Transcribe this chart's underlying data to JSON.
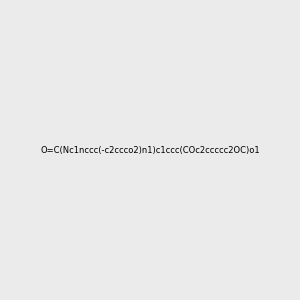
{
  "smiles": "O=C(Nc1nccc(-c2ccco2)n1)c1ccc(COc2ccccc2OC)o1",
  "background_color": "#ebebeb",
  "fig_width": 3.0,
  "fig_height": 3.0,
  "dpi": 100,
  "title": "",
  "atom_colors": {
    "N": "#0000ff",
    "O": "#ff0000",
    "C": "#000000",
    "H": "#000000"
  }
}
